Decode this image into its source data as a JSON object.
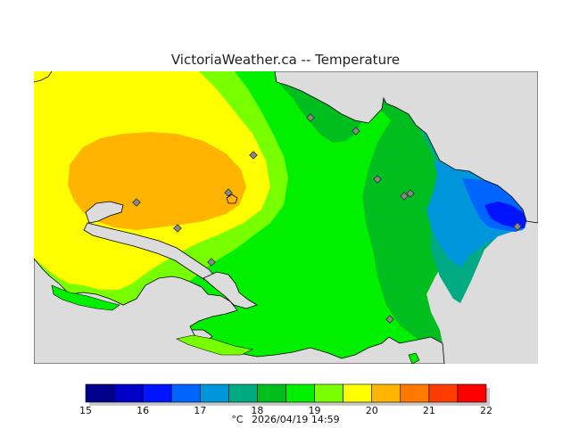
{
  "title": "VictoriaWeather.ca -- Temperature",
  "legend": {
    "ticks": [
      "15",
      "16",
      "17",
      "18",
      "19",
      "20",
      "21",
      "22"
    ],
    "colors": [
      "#00008c",
      "#0000c8",
      "#0014ff",
      "#0064ff",
      "#0096dc",
      "#00aa82",
      "#00be1e",
      "#00f000",
      "#78ff00",
      "#ffff00",
      "#ffb400",
      "#ff7800",
      "#ff3c00",
      "#ff0000"
    ]
  },
  "footer": {
    "unit": "°C",
    "timestamp": "2026/04/19 14:59"
  },
  "colors": {
    "ocean": "#dcdcdc",
    "background": "#ffffff",
    "station_marker": "#888888"
  }
}
